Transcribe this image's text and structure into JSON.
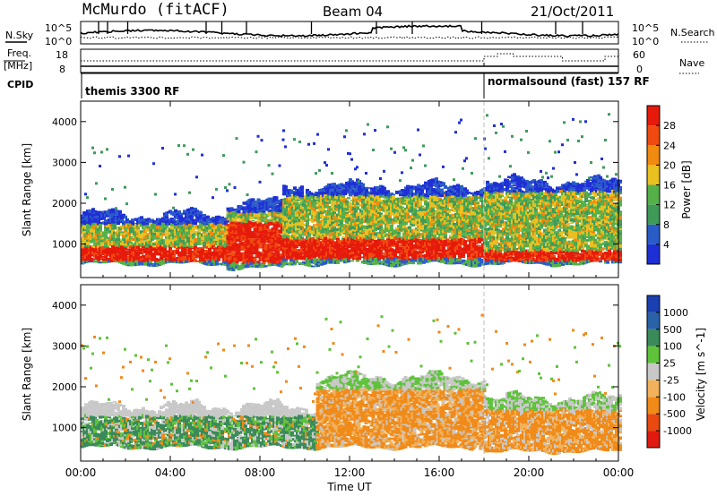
{
  "header": {
    "station": "McMurdo (fitACF)",
    "beam": "Beam 04",
    "date": "21/Oct/2011"
  },
  "noise_panel": {
    "left_label": "N.Sky",
    "right_label": "N.Search",
    "ytick_top": "10^5",
    "ytick_bottom": "10^0"
  },
  "freq_panel": {
    "left_label_1": "Freq.",
    "left_label_2": "[MHz]",
    "left_tick_top": "18",
    "left_tick_bottom": "8",
    "right_label": "Nave",
    "right_tick_top": "60",
    "right_tick_bottom": "0"
  },
  "cpid_panel": {
    "label": "CPID",
    "segments": [
      {
        "name": "themis 3300 RF",
        "start_hour": 0,
        "end_hour": 18.0
      },
      {
        "name": "normalsound (fast) 157 RF",
        "start_hour": 18.0,
        "end_hour": 24
      }
    ]
  },
  "x_axis": {
    "label": "Time UT",
    "ticks": [
      "00:00",
      "04:00",
      "08:00",
      "12:00",
      "16:00",
      "20:00",
      "00:00"
    ],
    "tick_hours": [
      0,
      4,
      8,
      12,
      16,
      20,
      24
    ]
  },
  "power_panel": {
    "ylabel": "Slant Range [km]",
    "yticks": [
      "1000",
      "2000",
      "3000",
      "4000"
    ],
    "colorbar_label": "Power [dB]",
    "colorbar_ticks": [
      "4",
      "8",
      "12",
      "16",
      "20",
      "24",
      "28"
    ],
    "colors": [
      "#1f2fd6",
      "#2a5cc8",
      "#3f9a5a",
      "#55b04a",
      "#e8c020",
      "#f08a10",
      "#f04a10",
      "#e61a0a"
    ]
  },
  "velocity_panel": {
    "ylabel": "Slant Range [km]",
    "yticks": [
      "1000",
      "2000",
      "3000",
      "4000"
    ],
    "colorbar_label": "Velocity [m s^-1]",
    "colorbar_ticks": [
      "1000",
      "500",
      "100",
      "25",
      "-25",
      "-100",
      "-500",
      "-1000"
    ],
    "colors": [
      "#1a3fb0",
      "#2a62a8",
      "#3a8a5a",
      "#5ec23a",
      "#c8c8c8",
      "#f2b15a",
      "#f08a18",
      "#e84a10",
      "#e01a10"
    ]
  },
  "chart_data": {
    "type": "heatmap",
    "title": "McMurdo (fitACF)  Beam 04  21/Oct/2011",
    "xlabel": "Time UT",
    "ylabel": "Slant Range [km]",
    "xlim_hours": [
      0,
      24
    ],
    "ylim_km": [
      180,
      4500
    ],
    "power_bands": [
      {
        "t0": 0.0,
        "t1": 6.5,
        "r0": 500,
        "r1": 1700,
        "core_r0": 550,
        "core_r1": 900
      },
      {
        "t0": 6.5,
        "t1": 9.0,
        "r0": 400,
        "r1": 2000,
        "core_r0": 500,
        "core_r1": 1500
      },
      {
        "t0": 9.0,
        "t1": 18.0,
        "r0": 500,
        "r1": 2400,
        "core_r0": 600,
        "core_r1": 1100
      },
      {
        "t0": 18.0,
        "t1": 24.0,
        "r0": 500,
        "r1": 2500,
        "core_r0": 550,
        "core_r1": 800
      }
    ],
    "velocity_bands": [
      {
        "t0": 0.0,
        "t1": 10.5,
        "r0": 500,
        "r1": 1500,
        "dominant": "100"
      },
      {
        "t0": 10.5,
        "t1": 18.0,
        "r0": 500,
        "r1": 2200,
        "dominant": "-100"
      },
      {
        "t0": 18.0,
        "t1": 24.0,
        "r0": 400,
        "r1": 1700,
        "dominant": "-100"
      }
    ]
  }
}
